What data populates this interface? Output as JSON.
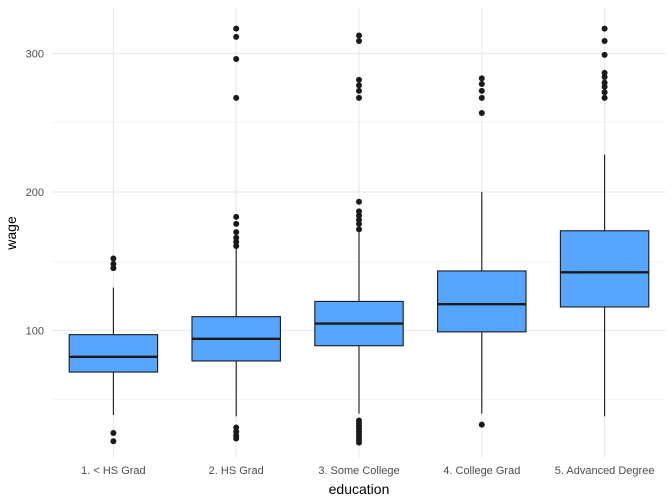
{
  "chart_data": {
    "type": "boxplot",
    "xlabel": "education",
    "ylabel": "wage",
    "ylim": [
      10,
      330
    ],
    "y_ticks": [
      100,
      200,
      300
    ],
    "y_tick_labels": [
      "100",
      "200",
      "300"
    ],
    "grid": true,
    "categories": [
      "1. < HS Grad",
      "2. HS Grad",
      "3. Some College",
      "4. College Grad",
      "5. Advanced Degree"
    ],
    "boxes": [
      {
        "category": "1. < HS Grad",
        "whisker_low": 39,
        "q1": 70,
        "median": 81,
        "q3": 97,
        "whisker_high": 131,
        "outliers": [
          20,
          26,
          145,
          148,
          152
        ]
      },
      {
        "category": "2. HS Grad",
        "whisker_low": 38,
        "q1": 78,
        "median": 94,
        "q3": 110,
        "whisker_high": 159,
        "outliers": [
          22,
          24,
          27,
          30,
          161,
          164,
          167,
          171,
          177,
          182,
          268,
          296,
          312,
          318
        ]
      },
      {
        "category": "3. Some College",
        "whisker_low": 40,
        "q1": 89,
        "median": 105,
        "q3": 121,
        "whisker_high": 171,
        "outliers": [
          19,
          21,
          23,
          25,
          27,
          29,
          31,
          33,
          35,
          173,
          177,
          180,
          183,
          186,
          193,
          268,
          273,
          277,
          281,
          309,
          313
        ]
      },
      {
        "category": "4. College Grad",
        "whisker_low": 40,
        "q1": 99,
        "median": 119,
        "q3": 143,
        "whisker_high": 200,
        "outliers": [
          32,
          257,
          268,
          273,
          278,
          282
        ]
      },
      {
        "category": "5. Advanced Degree",
        "whisker_low": 38,
        "q1": 117,
        "median": 142,
        "q3": 172,
        "whisker_high": 227,
        "outliers": [
          268,
          272,
          276,
          279,
          283,
          286,
          299,
          309,
          318
        ]
      }
    ],
    "colors": {
      "box_fill": "#56a5ff",
      "box_stroke": "#1a1a1a",
      "grid": "#ebebeb",
      "outlier": "#1a1a1a"
    }
  }
}
